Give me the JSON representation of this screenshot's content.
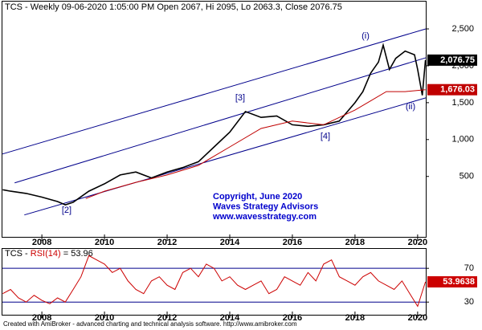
{
  "chart_data": [
    {
      "type": "line",
      "title": "TCS - Weekly 09-06-2020 1:05:00 PM Open 2067, Hi 2095, Lo 2063.3, Close 2076.75",
      "xlim": [
        2006.74,
        2020.26
      ],
      "xticks": [
        2008,
        2010,
        2012,
        2014,
        2016,
        2018,
        2020
      ],
      "ylim": [
        -330,
        2870
      ],
      "yticks": [
        500,
        {
          "value": 1000,
          "label": "1,000"
        },
        {
          "value": 1500,
          "label": "1,500"
        },
        {
          "value": 2000,
          "label": "2,000"
        },
        {
          "value": 2500,
          "label": "2,500"
        }
      ],
      "series": [
        {
          "color": "#000000",
          "x": [
            2006.75,
            2007.0,
            2007.5,
            2008.0,
            2008.5,
            2008.75,
            2009.0,
            2009.5,
            2010.0,
            2010.5,
            2011.0,
            2011.5,
            2012.0,
            2012.5,
            2013.0,
            2013.5,
            2014.0,
            2014.5,
            2015.0,
            2015.5,
            2016.0,
            2016.5,
            2017.0,
            2017.5,
            2018.0,
            2018.25,
            2018.5,
            2018.75,
            2018.9,
            2019.1,
            2019.3,
            2019.6,
            2019.9,
            2020.0,
            2020.15,
            2020.25
          ],
          "values": [
            320,
            300,
            270,
            220,
            160,
            115,
            150,
            300,
            400,
            520,
            560,
            480,
            560,
            620,
            700,
            900,
            1100,
            1380,
            1300,
            1320,
            1200,
            1180,
            1200,
            1250,
            1500,
            1650,
            1900,
            2050,
            2280,
            1950,
            2100,
            2200,
            2150,
            1950,
            1600,
            2076.75
          ],
          "last_label": "2,076.75"
        },
        {
          "color": "#c00000",
          "x": [
            2009.4,
            2010.0,
            2011.0,
            2012.0,
            2013.0,
            2014.0,
            2015.0,
            2016.0,
            2017.0,
            2018.0,
            2019.0,
            2019.6,
            2020.25
          ],
          "values": [
            200,
            300,
            420,
            520,
            650,
            900,
            1150,
            1250,
            1200,
            1400,
            1650,
            1650,
            1676.03
          ],
          "last_label": "1,676.03"
        }
      ],
      "lines": [
        {
          "color": "#00008b",
          "x": [
            2006.74,
            2020.26
          ],
          "values": [
            804,
            2500
          ]
        },
        {
          "color": "#00008b",
          "x": [
            2007.13,
            2020.26
          ],
          "values": [
            413,
            2109
          ]
        },
        {
          "color": "#00008b",
          "x": [
            2007.44,
            2020.26
          ],
          "values": [
            -22,
            1565
          ]
        }
      ],
      "annotations": [
        "[2]",
        "[3]",
        "[4]",
        "(i)",
        "(ii)"
      ],
      "watermark": [
        "Copyright, June 2020",
        "Waves Strategy Advisors",
        "www.wavesstrategy.com"
      ]
    },
    {
      "type": "line",
      "title": [
        "TCS - ",
        "RSI(14)",
        " = 53.96"
      ],
      "xlim": [
        2006.74,
        2020.26
      ],
      "xticks": [
        2008,
        2010,
        2012,
        2014,
        2016,
        2018,
        2020
      ],
      "ylim": [
        15,
        93
      ],
      "yticks": [
        30,
        70
      ],
      "series": [
        {
          "color": "#cc0000",
          "x": [
            2006.75,
            2007.0,
            2007.25,
            2007.5,
            2007.75,
            2008.0,
            2008.25,
            2008.5,
            2008.75,
            2009.0,
            2009.25,
            2009.5,
            2009.75,
            2010.0,
            2010.25,
            2010.5,
            2010.75,
            2011.0,
            2011.25,
            2011.5,
            2011.75,
            2012.0,
            2012.25,
            2012.5,
            2012.75,
            2013.0,
            2013.25,
            2013.5,
            2013.75,
            2014.0,
            2014.25,
            2014.5,
            2014.75,
            2015.0,
            2015.25,
            2015.5,
            2015.75,
            2016.0,
            2016.25,
            2016.5,
            2016.75,
            2017.0,
            2017.25,
            2017.5,
            2017.75,
            2018.0,
            2018.25,
            2018.5,
            2018.75,
            2019.0,
            2019.25,
            2019.5,
            2019.75,
            2020.0,
            2020.25
          ],
          "values": [
            40,
            45,
            35,
            30,
            38,
            32,
            28,
            35,
            30,
            45,
            60,
            85,
            80,
            75,
            65,
            70,
            55,
            45,
            40,
            55,
            60,
            50,
            45,
            65,
            70,
            60,
            75,
            70,
            55,
            60,
            50,
            45,
            50,
            55,
            40,
            45,
            60,
            55,
            50,
            65,
            55,
            75,
            80,
            60,
            55,
            50,
            60,
            65,
            55,
            50,
            45,
            55,
            40,
            25,
            53.9638
          ],
          "last_label": "53.9638"
        }
      ]
    }
  ],
  "footer": "Created with AmiBroker - advanced charting and technical analysis software. http://www.amibroker.com"
}
